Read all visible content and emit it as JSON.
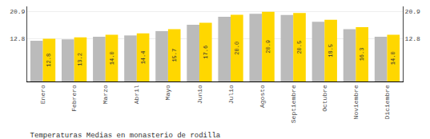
{
  "chart_data": {
    "type": "bar",
    "title": "Temperaturas Medias en monasterio de rodilla",
    "categories": [
      "Enero",
      "Febrero",
      "Marzo",
      "Abril",
      "Mayo",
      "Junio",
      "Julio",
      "Agosto",
      "Septiembre",
      "Octubre",
      "Noviembre",
      "Diciembre"
    ],
    "series": [
      {
        "color": "#BBBBBB",
        "values": [
          12.2,
          12.6,
          13.4,
          13.8,
          15.1,
          17.0,
          19.4,
          20.3,
          19.9,
          17.9,
          15.7,
          13.4
        ]
      },
      {
        "color": "#FFD700",
        "values": [
          12.8,
          13.2,
          14.0,
          14.4,
          15.7,
          17.6,
          20.0,
          20.9,
          20.5,
          18.5,
          16.3,
          14.0
        ],
        "data_labels": true,
        "value_labels": [
          "12.8",
          "13.2",
          "14.0",
          "14.4",
          "15.7",
          "17.6",
          "20.0",
          "20.9",
          "20.5",
          "18.5",
          "16.3",
          "14.0"
        ]
      }
    ],
    "ylim": [
      0,
      22.5
    ],
    "yticks": [
      12.8,
      20.9
    ],
    "y2lim": [
      0,
      22.5
    ],
    "y2ticks": [
      12.8,
      20.9
    ],
    "grid": true
  }
}
